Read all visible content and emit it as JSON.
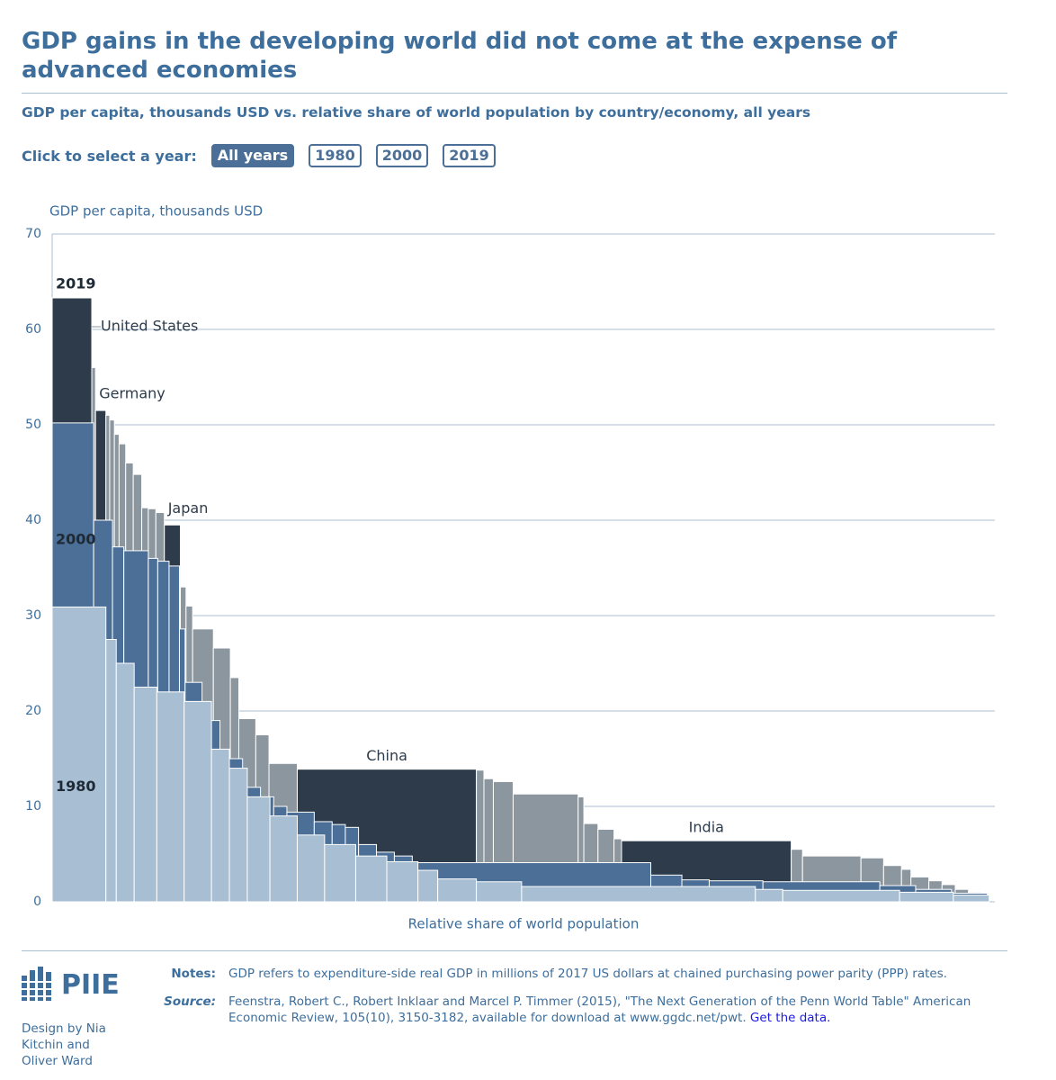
{
  "header": {
    "title": "GDP gains in the developing world did not come at the expense of advanced economies",
    "subtitle": "GDP per capita, thousands USD vs. relative share of world population by country/economy, all years"
  },
  "controls": {
    "label": "Click to select a year:",
    "buttons": [
      "All years",
      "1980",
      "2000",
      "2019"
    ],
    "selected": 0
  },
  "chart_data": {
    "type": "variable-width-bar",
    "y_label": "GDP per capita, thousands USD",
    "x_label": "Relative share of world population",
    "xlim": [
      0,
      100
    ],
    "ylim": [
      0,
      70
    ],
    "yticks": [
      0,
      10,
      20,
      30,
      40,
      50,
      60,
      70
    ],
    "grid": true,
    "series": [
      {
        "name": "2019",
        "color": "#2d3b4a",
        "other_color": "#8c969e",
        "categories": [
          "United States",
          null,
          "Germany",
          null,
          null,
          null,
          null,
          null,
          null,
          null,
          null,
          null,
          "Japan",
          null,
          null,
          null,
          null,
          null,
          null,
          null,
          null,
          "China",
          null,
          null,
          null,
          null,
          null,
          null,
          null,
          null,
          "India",
          null,
          null,
          null,
          null,
          null,
          null,
          null,
          null,
          null,
          null,
          null
        ],
        "shares": [
          4.2,
          0.4,
          1.1,
          0.4,
          0.5,
          0.5,
          0.7,
          0.8,
          0.9,
          0.7,
          0.8,
          0.9,
          1.7,
          0.6,
          0.7,
          2.2,
          1.8,
          0.9,
          1.8,
          1.4,
          3.0,
          19.0,
          0.8,
          1.0,
          2.1,
          6.9,
          0.6,
          1.5,
          1.7,
          0.8,
          18.0,
          1.2,
          6.2,
          2.4,
          1.9,
          1.0,
          1.9,
          1.4,
          1.4,
          1.4,
          1.4,
          0.6
        ],
        "values": [
          63.3,
          56,
          51.5,
          51,
          50.5,
          49,
          48,
          46,
          44.8,
          41.3,
          41.2,
          40.8,
          39.5,
          33,
          31,
          28.6,
          26.6,
          23.5,
          19.2,
          17.5,
          14.5,
          13.9,
          13.8,
          12.9,
          12.6,
          11.3,
          11,
          8.2,
          7.6,
          6.6,
          6.4,
          5.5,
          4.8,
          4.6,
          3.8,
          3.4,
          2.6,
          2.2,
          1.8,
          1.3,
          1.0,
          0.5
        ]
      },
      {
        "name": "2000",
        "color": "#4b6f96",
        "shares": [
          4.4,
          2.0,
          1.2,
          2.6,
          1.0,
          1.2,
          1.1,
          0.6,
          1.8,
          1.9,
          2.4,
          1.9,
          1.4,
          1.4,
          2.9,
          1.9,
          1.4,
          1.4,
          1.9,
          1.9,
          1.9,
          25.3,
          3.3,
          2.9,
          5.7,
          12.4,
          3.8,
          3.8,
          3.8
        ],
        "values": [
          50.2,
          40,
          37.2,
          36.8,
          36,
          35.7,
          35.2,
          28.6,
          23,
          19,
          15,
          12,
          11,
          10,
          9.4,
          8.4,
          8.1,
          7.8,
          6,
          5.2,
          4.8,
          4.1,
          2.8,
          2.3,
          2.2,
          2.1,
          1.7,
          1.3,
          0.9
        ]
      },
      {
        "name": "1980",
        "color": "#a8bed3",
        "shares": [
          5.7,
          1.1,
          1.9,
          2.4,
          2.9,
          2.9,
          1.9,
          1.9,
          2.4,
          2.9,
          2.9,
          3.3,
          3.3,
          3.3,
          2.1,
          4.1,
          4.8,
          24.8,
          2.9,
          12.4,
          5.7,
          3.8
        ],
        "values": [
          30.9,
          27.5,
          25,
          22.5,
          22,
          21,
          16,
          14,
          11,
          9,
          7,
          6,
          4.8,
          4.2,
          3.3,
          2.4,
          2.1,
          1.6,
          1.3,
          1.2,
          1.0,
          0.7
        ]
      }
    ]
  },
  "footer": {
    "logo": "PIIE",
    "credit": "Design by Nia Kitchin and Oliver Ward",
    "notes_label": "Notes:",
    "notes": "GDP refers to expenditure-side real GDP in millions of 2017 US dollars at chained purchasing power parity (PPP) rates.",
    "source_label": "Source:",
    "source": "Feenstra, Robert C., Robert Inklaar and Marcel P. Timmer (2015), \"The Next Generation of the Penn World Table\" American Economic Review, 105(10), 3150-3182, available for download at www.ggdc.net/pwt.",
    "link": "Get the data."
  }
}
